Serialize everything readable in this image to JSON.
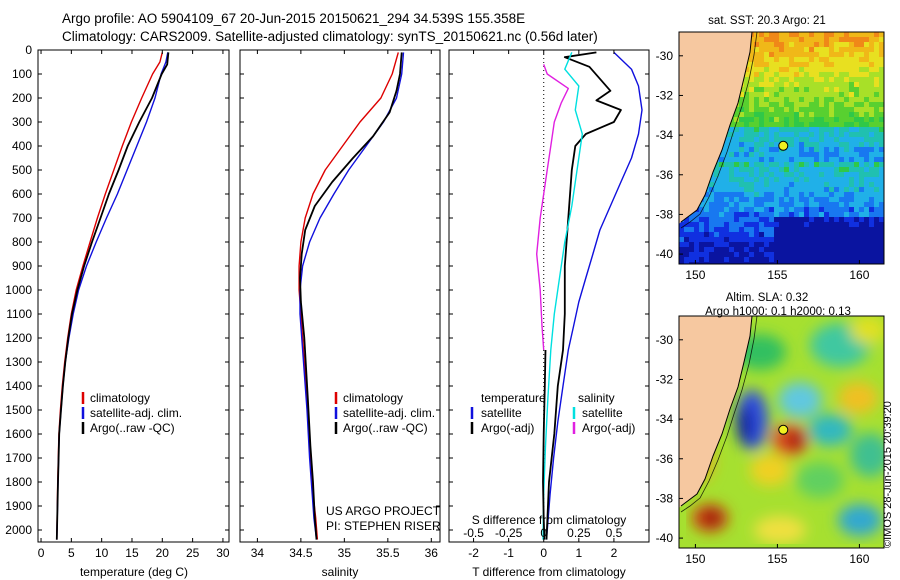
{
  "header": {
    "line1": "Argo profile: AO 5904109_67 20-Jun-2015 20150621_294 34.539S 155.358E",
    "line2": "Climatology: CARS2009. Satellite-adjusted climatology: synTS_20150621.nc (0.56d later)"
  },
  "credit": {
    "line1": "US ARGO PROJECT",
    "line2": "PI: STEPHEN RISER"
  },
  "stamp": "©IMOS 28-Jun-2015 20:39:20",
  "colors": {
    "climatology": "#dd0000",
    "satellite": "#1010dd",
    "argo": "#000000",
    "temp_diff": "#00e0e0",
    "sal_diff": "#e020e0",
    "land": "#f6c8a0"
  },
  "chart_data": [
    {
      "type": "line",
      "name": "temperature-profile",
      "xlabel": "temperature (deg C)",
      "ylabel": "",
      "xlim": [
        -0.5,
        31
      ],
      "ylim": [
        2050,
        0
      ],
      "xticks": [
        0,
        5,
        10,
        15,
        20,
        25,
        30
      ],
      "yticks": [
        0,
        100,
        200,
        300,
        400,
        500,
        600,
        700,
        800,
        900,
        1000,
        1100,
        1200,
        1300,
        1400,
        1500,
        1600,
        1700,
        1800,
        1900,
        2000
      ],
      "legend": [
        "climatology",
        "satellite-adj. clim.",
        "Argo(..raw -QC)"
      ],
      "series": [
        {
          "name": "climatology",
          "color": "#dd0000",
          "x": [
            20.0,
            19.6,
            18.4,
            16.6,
            14.9,
            13.4,
            12.0,
            10.6,
            9.3,
            8.1,
            6.9,
            5.8,
            5.0,
            4.4,
            3.9,
            3.5,
            3.2,
            2.95,
            2.75,
            2.6
          ],
          "y": [
            10,
            50,
            100,
            200,
            300,
            400,
            500,
            600,
            700,
            800,
            900,
            1000,
            1100,
            1200,
            1300,
            1400,
            1500,
            1600,
            1800,
            2040
          ]
        },
        {
          "name": "satellite-adj. clim.",
          "color": "#1010dd",
          "x": [
            20.9,
            20.6,
            19.8,
            18.8,
            17.4,
            15.8,
            14.2,
            12.6,
            10.8,
            9.1,
            7.5,
            6.2,
            5.3,
            4.6,
            4.0,
            3.6,
            3.3,
            3.0,
            2.8,
            2.6
          ],
          "y": [
            10,
            50,
            100,
            200,
            300,
            400,
            500,
            600,
            700,
            800,
            900,
            1000,
            1100,
            1200,
            1300,
            1400,
            1500,
            1600,
            1800,
            2040
          ]
        },
        {
          "name": "Argo(..raw -QC)",
          "color": "#000000",
          "x": [
            21.0,
            20.8,
            19.9,
            18.3,
            16.2,
            14.3,
            12.8,
            11.2,
            9.8,
            8.4,
            7.1,
            6.0,
            5.1,
            4.5,
            4.0,
            3.6,
            3.3,
            3.0,
            2.8,
            2.6
          ],
          "y": [
            10,
            60,
            100,
            200,
            300,
            400,
            500,
            600,
            700,
            800,
            900,
            1000,
            1100,
            1200,
            1300,
            1400,
            1500,
            1600,
            1800,
            2040
          ]
        }
      ]
    },
    {
      "type": "line",
      "name": "salinity-profile",
      "xlabel": "salinity",
      "ylabel": "",
      "xlim": [
        33.8,
        36.1
      ],
      "ylim": [
        2050,
        0
      ],
      "xticks": [
        34,
        34.5,
        35,
        35.5,
        36
      ],
      "legend": [
        "climatology",
        "satellite-adj. clim.",
        "Argo(..raw -QC)"
      ],
      "series": [
        {
          "name": "climatology",
          "color": "#dd0000",
          "x": [
            35.62,
            35.55,
            35.42,
            35.18,
            34.98,
            34.78,
            34.64,
            34.55,
            34.5,
            34.48,
            34.48,
            34.5,
            34.54,
            34.58,
            34.61,
            34.64,
            34.67,
            34.69
          ],
          "y": [
            10,
            100,
            200,
            300,
            400,
            500,
            600,
            700,
            800,
            900,
            1000,
            1100,
            1300,
            1500,
            1700,
            1850,
            1950,
            2040
          ]
        },
        {
          "name": "satellite-adj. clim.",
          "color": "#1010dd",
          "x": [
            35.68,
            35.66,
            35.6,
            35.45,
            35.25,
            35.05,
            34.88,
            34.72,
            34.6,
            34.52,
            34.49,
            34.49,
            34.53,
            34.57,
            34.6,
            34.63,
            34.65,
            34.68
          ],
          "y": [
            10,
            100,
            200,
            300,
            400,
            500,
            600,
            700,
            800,
            900,
            1000,
            1100,
            1300,
            1500,
            1700,
            1850,
            1950,
            2040
          ]
        },
        {
          "name": "Argo(..raw -QC)",
          "color": "#000000",
          "x": [
            35.66,
            35.64,
            35.6,
            35.52,
            35.33,
            35.1,
            34.86,
            34.66,
            34.55,
            34.51,
            34.49,
            34.5,
            34.54,
            34.58,
            34.61,
            34.64,
            34.66,
            34.68
          ],
          "y": [
            10,
            100,
            170,
            260,
            360,
            450,
            550,
            650,
            750,
            850,
            950,
            1050,
            1200,
            1450,
            1650,
            1800,
            1950,
            2040
          ]
        }
      ]
    },
    {
      "type": "line",
      "name": "difference-from-climatology",
      "xlabel": "T difference from climatology",
      "xlabel2": "S difference from climatology",
      "xlim": [
        -2.7,
        3.0
      ],
      "ylim": [
        2050,
        0
      ],
      "xticks": [
        -2,
        -1,
        0,
        1,
        2
      ],
      "xticks_salinity": [
        "-0.5",
        "-0.25",
        "0",
        "0.25",
        "0.5"
      ],
      "xticks_salinity_pos": [
        -2,
        -1,
        0,
        1,
        2
      ],
      "legend_headings": [
        "temperature",
        "salinity"
      ],
      "legend": [
        "satellite",
        "Argo(-adj)",
        "satellite",
        "Argo(-adj)"
      ],
      "series": [
        {
          "name": "temperature satellite",
          "color": "#1010dd",
          "x": [
            2.0,
            2.5,
            2.7,
            2.8,
            2.7,
            2.5,
            2.2,
            1.9,
            1.6,
            1.4,
            1.2,
            1.0,
            0.85,
            0.7,
            0.55,
            0.4,
            0.28,
            0.18,
            0.08
          ],
          "y": [
            10,
            80,
            150,
            250,
            350,
            450,
            550,
            650,
            750,
            850,
            950,
            1050,
            1150,
            1250,
            1400,
            1550,
            1700,
            1850,
            2040
          ]
        },
        {
          "name": "temperature Argo(-adj)",
          "color": "#000000",
          "x": [
            1.5,
            0.6,
            1.3,
            1.6,
            1.9,
            1.5,
            2.2,
            2.0,
            1.2,
            0.9,
            0.8,
            0.7,
            0.6,
            0.6,
            0.55,
            0.4,
            0.3,
            0.15,
            0.08
          ],
          "y": [
            10,
            30,
            70,
            120,
            170,
            210,
            250,
            300,
            350,
            400,
            500,
            700,
            900,
            1100,
            1250,
            1400,
            1600,
            1800,
            2040
          ]
        },
        {
          "name": "salinity satellite",
          "color": "#00e0e0",
          "x": [
            0.8,
            0.6,
            1.0,
            0.9,
            1.1,
            1.0,
            0.9,
            0.8,
            0.6,
            0.45,
            0.3,
            0.2,
            0.12,
            0.05,
            0.0,
            -0.02
          ],
          "y": [
            10,
            80,
            150,
            250,
            350,
            450,
            550,
            650,
            800,
            950,
            1100,
            1250,
            1450,
            1650,
            1850,
            2040
          ]
        },
        {
          "name": "salinity Argo(-adj)",
          "color": "#e020e0",
          "x": [
            0.0,
            0.1,
            0.7,
            0.5,
            0.3,
            0.2,
            0.1,
            0.0,
            -0.1,
            -0.2,
            -0.1,
            -0.05,
            0.0
          ],
          "y": [
            60,
            100,
            160,
            220,
            300,
            400,
            500,
            600,
            700,
            850,
            1000,
            1150,
            1250
          ]
        },
        {
          "name": "salinity Argo(-adj) extension",
          "color": "#000000",
          "x": [
            0.05,
            0.03,
            0.0,
            -0.02,
            0.0,
            0.02
          ],
          "y": [
            1250,
            1400,
            1600,
            1800,
            1950,
            2040
          ]
        }
      ]
    }
  ],
  "maps": [
    {
      "name": "sst-map",
      "title": "sat. SST: 20.3 Argo: 21",
      "lon_ticks": [
        "150",
        "155",
        "160"
      ],
      "lat_ticks": [
        "-30",
        "-32",
        "-34",
        "-36",
        "-38",
        "-40"
      ],
      "lon_range": [
        149,
        161.5
      ],
      "lat_range": [
        -40.5,
        -28.8
      ],
      "float_lon": 155.358,
      "float_lat": -34.539
    },
    {
      "name": "sla-map",
      "title": "Altim. SLA: 0.32",
      "subtitle": "Argo h1000: 0.1 h2000: 0.13",
      "lon_ticks": [
        "150",
        "155",
        "160"
      ],
      "lat_ticks": [
        "-30",
        "-32",
        "-34",
        "-36",
        "-38",
        "-40"
      ],
      "lon_range": [
        149,
        161.5
      ],
      "lat_range": [
        -40.5,
        -28.8
      ],
      "float_lon": 155.358,
      "float_lat": -34.539
    }
  ]
}
